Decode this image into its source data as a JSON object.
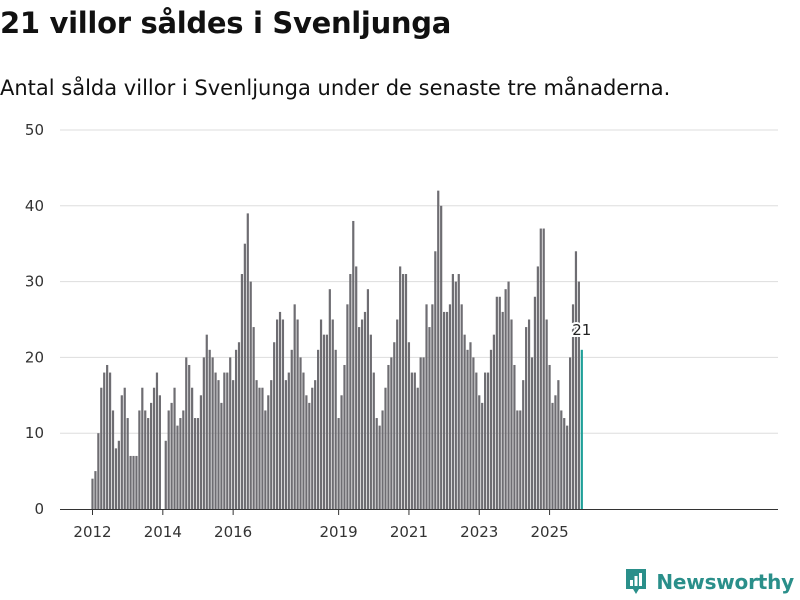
{
  "header": {
    "title": "21 villor såldes i Svenljunga",
    "subtitle": "Antal sålda villor i Svenljunga under de senaste tre månaderna."
  },
  "brand": {
    "name": "Newsworthy",
    "color": "#2a8f8a"
  },
  "colors": {
    "bar": "#6e6d72",
    "highlight": "#1f9f98",
    "grid": "#dddddd",
    "axis": "#333333"
  },
  "chart_data": {
    "type": "bar",
    "title": "21 villor såldes i Svenljunga",
    "subtitle": "Antal sålda villor i Svenljunga under de senaste tre månaderna.",
    "xlabel": "",
    "ylabel": "",
    "x_start": "2012-01",
    "x_step": "month",
    "ylim": [
      0,
      50
    ],
    "yticks": [
      0,
      10,
      20,
      30,
      40,
      50
    ],
    "xtick_labels": [
      {
        "label": "2012",
        "year": 2012
      },
      {
        "label": "2014",
        "year": 2014
      },
      {
        "label": "2016",
        "year": 2016
      },
      {
        "label": "2019",
        "year": 2019
      },
      {
        "label": "2021",
        "year": 2021
      },
      {
        "label": "2023",
        "year": 2023
      },
      {
        "label": "2025",
        "year": 2025
      }
    ],
    "grid": true,
    "values": [
      4,
      5,
      10,
      16,
      18,
      19,
      18,
      13,
      8,
      9,
      15,
      16,
      12,
      7,
      7,
      7,
      13,
      16,
      13,
      12,
      14,
      16,
      18,
      15,
      0,
      9,
      13,
      14,
      16,
      11,
      12,
      13,
      20,
      19,
      16,
      12,
      12,
      15,
      20,
      23,
      21,
      20,
      18,
      17,
      14,
      18,
      18,
      20,
      17,
      21,
      22,
      31,
      35,
      39,
      30,
      24,
      17,
      16,
      16,
      13,
      15,
      17,
      22,
      25,
      26,
      25,
      17,
      18,
      21,
      27,
      25,
      20,
      18,
      15,
      14,
      16,
      17,
      21,
      25,
      23,
      23,
      29,
      25,
      21,
      12,
      15,
      19,
      27,
      31,
      38,
      32,
      24,
      25,
      26,
      29,
      23,
      18,
      12,
      11,
      13,
      16,
      19,
      20,
      22,
      25,
      32,
      31,
      31,
      22,
      18,
      18,
      16,
      20,
      20,
      27,
      24,
      27,
      34,
      42,
      40,
      26,
      26,
      27,
      31,
      30,
      31,
      27,
      23,
      21,
      22,
      20,
      18,
      15,
      14,
      18,
      18,
      21,
      23,
      28,
      28,
      26,
      29,
      30,
      25,
      19,
      13,
      13,
      17,
      24,
      25,
      20,
      28,
      32,
      37,
      37,
      25,
      19,
      14,
      15,
      17,
      13,
      12,
      11,
      20,
      27,
      34,
      30,
      21
    ],
    "highlight_last": true,
    "annotation": {
      "label": "21",
      "value": 21
    }
  }
}
